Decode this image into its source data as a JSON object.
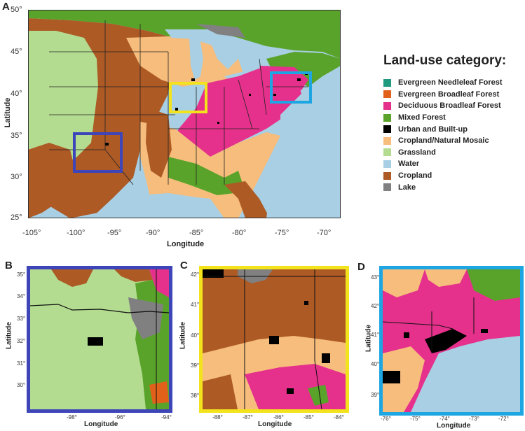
{
  "panels": {
    "A": {
      "letter": "A",
      "xlabel": "Longitude",
      "ylabel": "Latitude",
      "xticks": [
        "-105°",
        "-100°",
        "-95°",
        "-90°",
        "-85°",
        "-80°",
        "-75°",
        "-70°"
      ],
      "yticks": [
        "50°",
        "45°",
        "40°",
        "35°",
        "30°",
        "25°"
      ]
    },
    "B": {
      "letter": "B",
      "xlabel": "Longitude",
      "ylabel": "Latitude",
      "xticks": [
        "-98°",
        "-96°",
        "-94°"
      ],
      "yticks": [
        "35°",
        "34°",
        "33°",
        "32°",
        "31°",
        "30°"
      ]
    },
    "C": {
      "letter": "C",
      "xlabel": "Longitude",
      "ylabel": "Latitude",
      "xticks": [
        "-88°",
        "-87°",
        "-86°",
        "-85°",
        "-84°"
      ],
      "yticks": [
        "42°",
        "41°",
        "40°",
        "39°",
        "38°"
      ]
    },
    "D": {
      "letter": "D",
      "xlabel": "Longitude",
      "ylabel": "Latitude",
      "xticks": [
        "-76°",
        "-75°",
        "-74°",
        "-73°",
        "-72°"
      ],
      "yticks": [
        "43°",
        "42°",
        "41°",
        "40°",
        "39°"
      ]
    }
  },
  "zoom_boxes": [
    {
      "panel": "B",
      "color": "#3d45b8"
    },
    {
      "panel": "C",
      "color": "#f2e31d"
    },
    {
      "panel": "D",
      "color": "#1ea6e2"
    }
  ],
  "legend": {
    "title": "Land-use category:",
    "items": [
      {
        "label": "Evergreen Needleleaf Forest",
        "color": "#1f9a7f"
      },
      {
        "label": "Evergreen Broadleaf Forest",
        "color": "#e2611a"
      },
      {
        "label": "Deciduous Broadleaf Forest",
        "color": "#e5318c"
      },
      {
        "label": "Mixed Forest",
        "color": "#5aa32a"
      },
      {
        "label": "Urban and Built-up",
        "color": "#000000"
      },
      {
        "label": "Cropland/Natural Mosaic",
        "color": "#f6bd7d"
      },
      {
        "label": "Grassland",
        "color": "#b3dc91"
      },
      {
        "label": "Water",
        "color": "#a8cfe3"
      },
      {
        "label": "Cropland",
        "color": "#ad5a25"
      },
      {
        "label": "Lake",
        "color": "#808080"
      }
    ]
  }
}
